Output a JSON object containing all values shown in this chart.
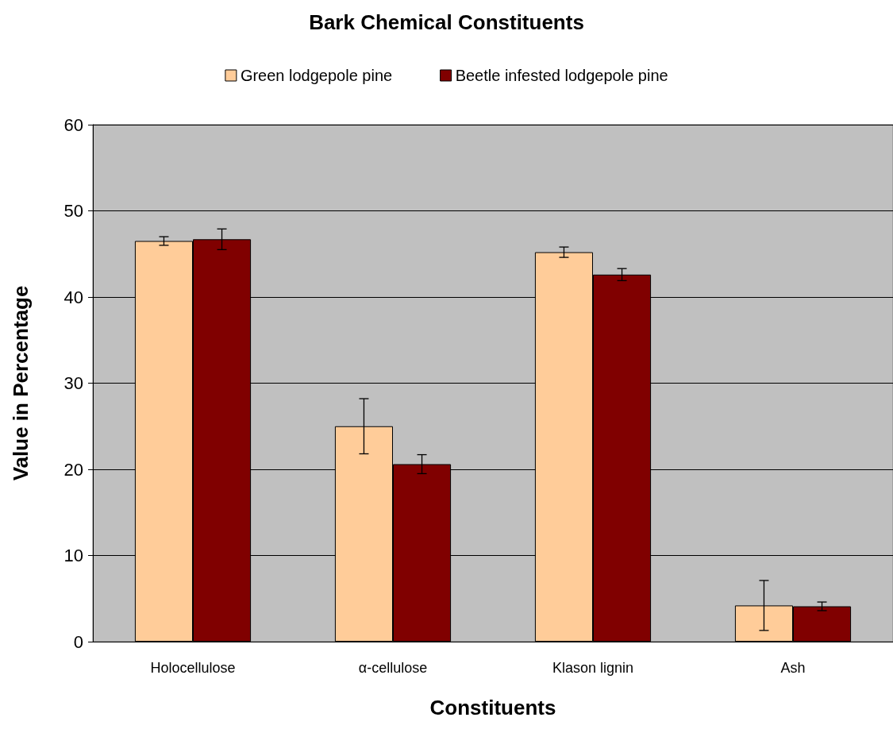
{
  "chart_data": {
    "type": "bar",
    "title": "Bark Chemical Constituents",
    "xlabel": "Constituents",
    "ylabel": "Value in Percentage",
    "categories": [
      "Holocellulose",
      "α-cellulose",
      "Klason lignin",
      "Ash"
    ],
    "series": [
      {
        "name": "Green lodgepole pine",
        "color": "#ffcc99",
        "values": [
          46.5,
          25.0,
          45.2,
          4.2
        ],
        "errors": [
          0.5,
          3.2,
          0.6,
          2.9
        ]
      },
      {
        "name": "Beetle infested lodgepole pine",
        "color": "#800000",
        "values": [
          46.7,
          20.6,
          42.6,
          4.1
        ],
        "errors": [
          1.2,
          1.1,
          0.7,
          0.5
        ]
      }
    ],
    "ylim": [
      0,
      60
    ],
    "yticks": [
      0,
      10,
      20,
      30,
      40,
      50,
      60
    ],
    "grid": "y",
    "legend": "top"
  }
}
